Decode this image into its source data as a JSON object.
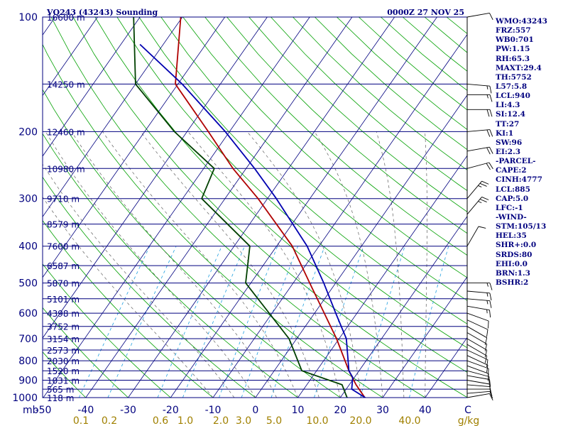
{
  "header": {
    "station": "VQ243 (43243) Sounding",
    "time": "0000Z 27 NOV 25"
  },
  "colors": {
    "frame": "#00007f",
    "temperature": "#b00000",
    "dewpoint": "#004000",
    "parcel": "#0000b0",
    "dry_adiabat": "#00a000",
    "moist_adiabat": "#606060",
    "mixing_ratio": "#20a0e0",
    "mixing_label": "#a08000"
  },
  "chart_data": {
    "type": "line",
    "title": "VQ243 (43243) Sounding",
    "subtitle": "0000Z 27 NOV 25",
    "y_axis": {
      "unit": "mb",
      "scale": "log",
      "range": [
        1000,
        100
      ],
      "reversed": true
    },
    "x_axis": {
      "unit": "C",
      "range": [
        -50,
        50
      ],
      "skew": true
    },
    "pressure_ticks": [
      {
        "p": 100,
        "label": "100"
      },
      {
        "p": 200,
        "label": "200"
      },
      {
        "p": 300,
        "label": "300"
      },
      {
        "p": 400,
        "label": "400"
      },
      {
        "p": 500,
        "label": "500"
      },
      {
        "p": 600,
        "label": "600"
      },
      {
        "p": 700,
        "label": "700"
      },
      {
        "p": 800,
        "label": "800"
      },
      {
        "p": 900,
        "label": "900"
      },
      {
        "p": 1000,
        "label": "1000"
      }
    ],
    "height_levels": [
      {
        "p": 100,
        "label": "16600 m"
      },
      {
        "p": 150,
        "label": "14250 m"
      },
      {
        "p": 200,
        "label": "12460 m"
      },
      {
        "p": 250,
        "label": "10980 m"
      },
      {
        "p": 300,
        "label": "9710 m"
      },
      {
        "p": 350,
        "label": "8579 m"
      },
      {
        "p": 400,
        "label": "7600 m"
      },
      {
        "p": 450,
        "label": "6587 m"
      },
      {
        "p": 500,
        "label": "5870 m"
      },
      {
        "p": 550,
        "label": "5101 m"
      },
      {
        "p": 600,
        "label": "4398 m"
      },
      {
        "p": 650,
        "label": "3752 m"
      },
      {
        "p": 700,
        "label": "3154 m"
      },
      {
        "p": 750,
        "label": "2573 m"
      },
      {
        "p": 800,
        "label": "2030 m"
      },
      {
        "p": 850,
        "label": "1520 m"
      },
      {
        "p": 900,
        "label": "1031 m"
      },
      {
        "p": 950,
        "label": "565 m"
      },
      {
        "p": 1000,
        "label": "118 m"
      }
    ],
    "temp_labels": [
      {
        "t": -50,
        "label": "-50"
      },
      {
        "t": -40,
        "label": "-40"
      },
      {
        "t": -30,
        "label": "-30"
      },
      {
        "t": -20,
        "label": "-20"
      },
      {
        "t": -10,
        "label": "-10"
      },
      {
        "t": 0,
        "label": "0"
      },
      {
        "t": 10,
        "label": "10"
      },
      {
        "t": 20,
        "label": "20"
      },
      {
        "t": 30,
        "label": "30"
      },
      {
        "t": 40,
        "label": "40"
      },
      {
        "t": 50,
        "label": "C"
      }
    ],
    "mixing_ratio_labels": [
      "0.1",
      "0.2",
      "0.6",
      "1.0",
      "2.0",
      "3.0",
      "5.0",
      "10.0",
      "20.0",
      "40.0",
      "g/kg"
    ],
    "mixing_ratios": [
      0.1,
      0.2,
      0.6,
      1.0,
      2.0,
      3.0,
      5.0,
      10.0,
      20.0,
      40.0
    ],
    "axis_unit_label": "mb",
    "series": [
      {
        "name": "temperature",
        "points": [
          {
            "p": 1008,
            "t": 26.6
          },
          {
            "p": 1000,
            "t": 25.8
          },
          {
            "p": 925,
            "t": 21.6
          },
          {
            "p": 850,
            "t": 17.6
          },
          {
            "p": 700,
            "t": 9.4
          },
          {
            "p": 500,
            "t": -6.1
          },
          {
            "p": 400,
            "t": -16.3
          },
          {
            "p": 300,
            "t": -32.2
          },
          {
            "p": 250,
            "t": -43.1
          },
          {
            "p": 200,
            "t": -55.0
          },
          {
            "p": 150,
            "t": -70.6
          },
          {
            "p": 100,
            "t": -80.4
          }
        ]
      },
      {
        "name": "dewpoint",
        "points": [
          {
            "p": 1008,
            "t": 23.0
          },
          {
            "p": 1000,
            "t": 21.6
          },
          {
            "p": 925,
            "t": 18.3
          },
          {
            "p": 850,
            "t": 6.5
          },
          {
            "p": 700,
            "t": -1.8
          },
          {
            "p": 500,
            "t": -21.2
          },
          {
            "p": 400,
            "t": -26.3
          },
          {
            "p": 300,
            "t": -45.5
          },
          {
            "p": 250,
            "t": -47.5
          },
          {
            "p": 200,
            "t": -63.0
          },
          {
            "p": 150,
            "t": -80.0
          },
          {
            "p": 100,
            "t": -91.5
          }
        ]
      },
      {
        "name": "parcel",
        "points": [
          {
            "p": 1008,
            "t": 26.6
          },
          {
            "p": 950,
            "t": 21.3
          },
          {
            "p": 885,
            "t": 19.6
          },
          {
            "p": 850,
            "t": 17.6
          },
          {
            "p": 700,
            "t": 11.7
          },
          {
            "p": 600,
            "t": 5.0
          },
          {
            "p": 500,
            "t": -2.8
          },
          {
            "p": 400,
            "t": -12.8
          },
          {
            "p": 300,
            "t": -27.9
          },
          {
            "p": 250,
            "t": -38.0
          },
          {
            "p": 200,
            "t": -51.0
          },
          {
            "p": 150,
            "t": -69.0
          },
          {
            "p": 118,
            "t": -85.5
          }
        ]
      }
    ],
    "wind_barbs": [
      {
        "p": 1000,
        "dir": 80,
        "spd": 10
      },
      {
        "p": 975,
        "dir": 85,
        "spd": 10
      },
      {
        "p": 950,
        "dir": 90,
        "spd": 10
      },
      {
        "p": 925,
        "dir": 95,
        "spd": 10
      },
      {
        "p": 900,
        "dir": 100,
        "spd": 10
      },
      {
        "p": 875,
        "dir": 100,
        "spd": 10
      },
      {
        "p": 850,
        "dir": 105,
        "spd": 10
      },
      {
        "p": 825,
        "dir": 110,
        "spd": 10
      },
      {
        "p": 800,
        "dir": 110,
        "spd": 10
      },
      {
        "p": 775,
        "dir": 115,
        "spd": 10
      },
      {
        "p": 750,
        "dir": 115,
        "spd": 10
      },
      {
        "p": 725,
        "dir": 120,
        "spd": 10
      },
      {
        "p": 700,
        "dir": 120,
        "spd": 10
      },
      {
        "p": 675,
        "dir": 120,
        "spd": 10
      },
      {
        "p": 650,
        "dir": 120,
        "spd": 10
      },
      {
        "p": 625,
        "dir": 115,
        "spd": 10
      },
      {
        "p": 600,
        "dir": 110,
        "spd": 10
      },
      {
        "p": 575,
        "dir": 100,
        "spd": 15
      },
      {
        "p": 550,
        "dir": 95,
        "spd": 15
      },
      {
        "p": 525,
        "dir": 95,
        "spd": 15
      },
      {
        "p": 500,
        "dir": 90,
        "spd": 15
      },
      {
        "p": 400,
        "dir": 30,
        "spd": 10
      },
      {
        "p": 330,
        "dir": 40,
        "spd": 25
      },
      {
        "p": 300,
        "dir": 40,
        "spd": 25
      },
      {
        "p": 250,
        "dir": 75,
        "spd": 20
      },
      {
        "p": 225,
        "dir": 80,
        "spd": 20
      },
      {
        "p": 200,
        "dir": 85,
        "spd": 20
      },
      {
        "p": 175,
        "dir": 90,
        "spd": 20
      },
      {
        "p": 160,
        "dir": 90,
        "spd": 15
      },
      {
        "p": 150,
        "dir": 95,
        "spd": 15
      },
      {
        "p": 100,
        "dir": 80,
        "spd": 10
      }
    ]
  },
  "indices": [
    "WMO:43243",
    "FRZ:557",
    "WB0:701",
    "PW:1.15",
    "RH:65.3",
    "MAXT:29.4",
    "TH:5752",
    "L57:5.8",
    "LCL:940",
    "LI:4.3",
    "SI:12.4",
    "TT:27",
    "KI:1",
    "SW:96",
    "EI:2.3",
    "-PARCEL-",
    "CAPE:2",
    "CINH:4777",
    "LCL:885",
    "CAP:5.0",
    "LFC:-1",
    "-WIND-",
    "STM:105/13",
    "HEL:35",
    "SHR+:0.0",
    "SRDS:80",
    "EHI:0.0",
    "BRN:1.3",
    "BSHR:2"
  ]
}
